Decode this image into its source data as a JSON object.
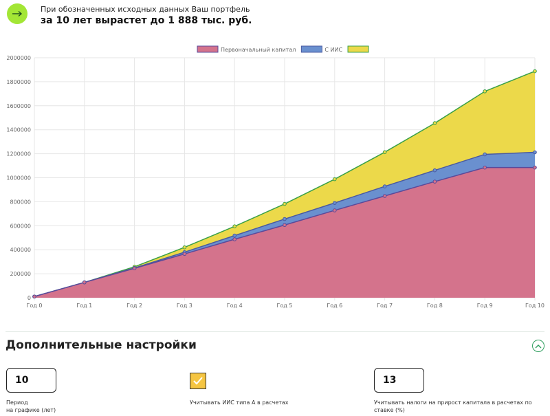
{
  "summary": {
    "subtitle": "При обозначенных исходных данных Ваш портфель",
    "headline": "за 10 лет вырастет до 1 888 тыс. руб."
  },
  "icons": {
    "summary": "arrow-right-icon",
    "collapse": "chevron-up-icon",
    "checkbox": "checkmark-icon"
  },
  "colors": {
    "accent": "#a3e635",
    "section_green": "#2e9e5e",
    "checkbox": "#f5c542"
  },
  "chart_data": {
    "type": "area",
    "stacked": true,
    "x": [
      "Год 0",
      "Год 1",
      "Год 2",
      "Год 3",
      "Год 4",
      "Год 5",
      "Год 6",
      "Год 7",
      "Год 8",
      "Год 9",
      "Год 10"
    ],
    "ylim": [
      0,
      2000000
    ],
    "yticks": [
      0,
      200000,
      400000,
      600000,
      800000,
      1000000,
      1200000,
      1400000,
      1600000,
      1800000,
      2000000
    ],
    "legend_position": "top",
    "grid": true,
    "series": [
      {
        "name": "Первоначальный капитал",
        "fill": "#d4738c",
        "stroke": "#5a4a9a",
        "values": [
          10000,
          128000,
          245000,
          365000,
          487000,
          606000,
          728000,
          848000,
          968000,
          1085000,
          1085000
        ]
      },
      {
        "name": "С ИИС",
        "fill": "#6a90cf",
        "stroke": "#4a5aa0",
        "values": [
          10000,
          128000,
          248000,
          380000,
          518000,
          656000,
          790000,
          928000,
          1062000,
          1195000,
          1212000
        ]
      },
      {
        "name": "",
        "fill": "#ecd94a",
        "stroke": "#3aa048",
        "values": [
          10000,
          128000,
          258000,
          420000,
          595000,
          782000,
          988000,
          1213000,
          1455000,
          1720000,
          1888000
        ]
      }
    ]
  },
  "settings": {
    "title": "Дополнительные настройки",
    "period": {
      "value": "10",
      "label_line1": "Период",
      "label_line2": "на графике (лет)"
    },
    "iis": {
      "checked": true,
      "label": "Учитывать ИИС типа А в расчетах"
    },
    "tax": {
      "value": "13",
      "label_line1": "Учитывать налоги на прирост капитала в расчетах по",
      "label_line2": "ставке (%)"
    }
  }
}
